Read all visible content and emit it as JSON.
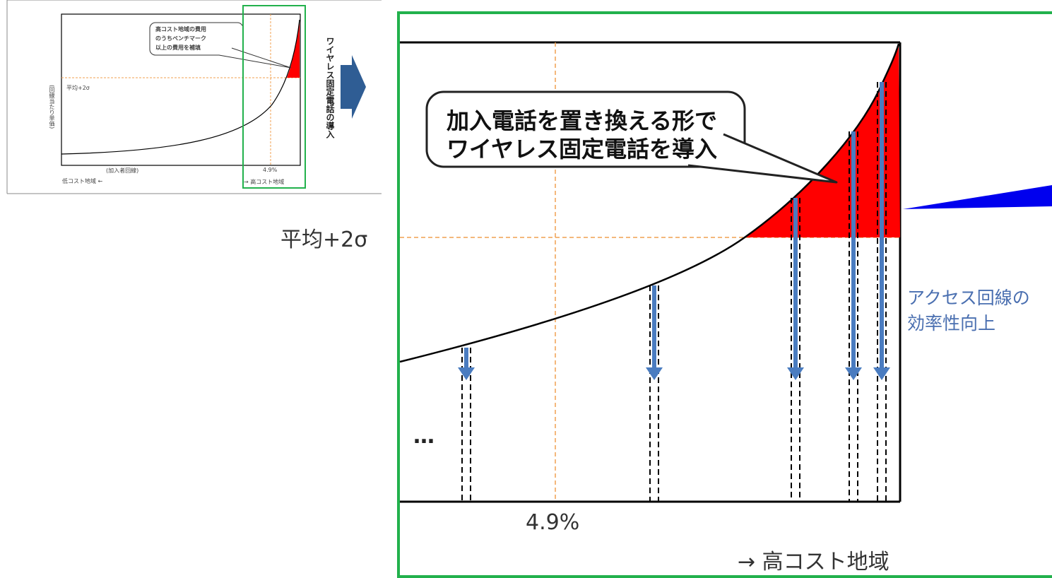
{
  "small_diagram": {
    "callout_text": [
      "高コスト地域の費用",
      "のうちベンチマーク",
      "以上の費用を補填"
    ],
    "avg_label": "平均+2σ",
    "y_axis_label": "(回線当たり単価)",
    "x_axis_label": "(加入者回線)",
    "pct_label": "4.9%",
    "low_cost_label": "低コスト地域 ←",
    "high_cost_label": "→ 高コスト地域"
  },
  "transition": {
    "label": "ワイヤレス固定電話の導入"
  },
  "large_diagram": {
    "avg_label": "平均+2σ",
    "callout_text": [
      "加入電話を置き換える形で",
      "ワイヤレス固定電話を導入"
    ],
    "side_note": [
      "アクセス回線の",
      "効率性向上"
    ],
    "ellipsis": "…",
    "pct_label": "4.9%",
    "high_cost_label": "→ 高コスト地域"
  },
  "colors": {
    "highlight_red": "#ff0000",
    "frame_green": "#22b14c",
    "arrow_blue": "#4a7cc0",
    "guide_orange": "#f0a050",
    "connector_blue": "#0000ee"
  }
}
